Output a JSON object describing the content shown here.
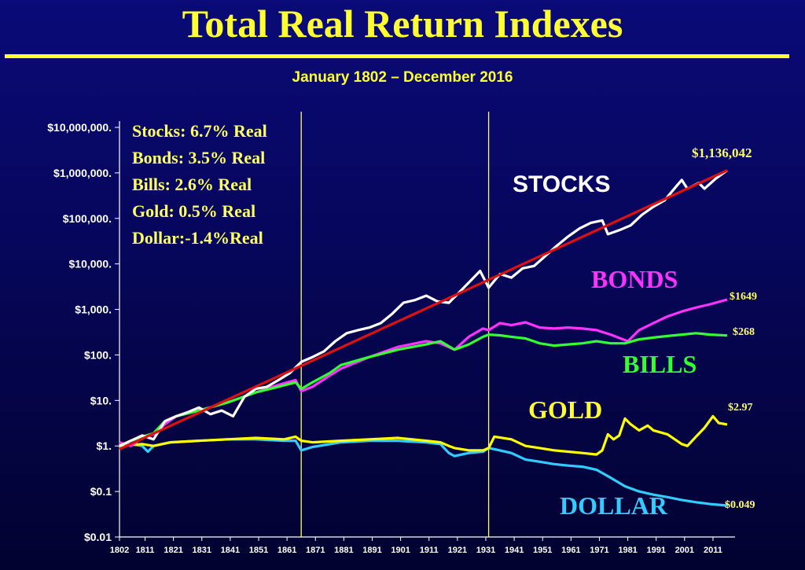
{
  "chart_data": {
    "type": "line",
    "title": "Total Real Return Indexes",
    "subtitle": "January 1802 – December 2016",
    "yscale": "log",
    "ylim": [
      0.01,
      10000000
    ],
    "xlim": [
      1802,
      2016
    ],
    "y_ticks": [
      {
        "value": 10000000,
        "label": "$10,000,000."
      },
      {
        "value": 1000000,
        "label": "$1,000,000."
      },
      {
        "value": 100000,
        "label": "$100,000."
      },
      {
        "value": 10000,
        "label": "$10,000."
      },
      {
        "value": 1000,
        "label": "$1,000."
      },
      {
        "value": 100,
        "label": "$100."
      },
      {
        "value": 10,
        "label": "$10."
      },
      {
        "value": 1,
        "label": "$1."
      },
      {
        "value": 0.1,
        "label": "$0.1"
      },
      {
        "value": 0.01,
        "label": "$0.01"
      }
    ],
    "x_ticks": [
      1802,
      1811,
      1821,
      1831,
      1841,
      1851,
      1861,
      1871,
      1881,
      1891,
      1901,
      1911,
      1921,
      1931,
      1941,
      1951,
      1961,
      1971,
      1981,
      1991,
      2001,
      2011
    ],
    "vlines": [
      1866,
      1932
    ],
    "legend": [
      "Stocks: 6.7% Real",
      "Bonds: 3.5% Real",
      "Bills:    2.6% Real",
      "Gold:   0.5% Real",
      "Dollar:-1.4%Real"
    ],
    "series": [
      {
        "name": "STOCKS",
        "color": "#ffffff",
        "end_label": "$1,136,042",
        "x": [
          1802,
          1806,
          1810,
          1814,
          1818,
          1822,
          1826,
          1830,
          1834,
          1838,
          1842,
          1846,
          1850,
          1854,
          1858,
          1862,
          1866,
          1870,
          1874,
          1878,
          1882,
          1886,
          1890,
          1894,
          1898,
          1902,
          1906,
          1910,
          1914,
          1918,
          1922,
          1926,
          1929,
          1932,
          1936,
          1940,
          1944,
          1948,
          1952,
          1956,
          1960,
          1964,
          1968,
          1972,
          1974,
          1978,
          1982,
          1986,
          1990,
          1994,
          1998,
          2000,
          2002,
          2006,
          2008,
          2012,
          2016
        ],
        "y": [
          1,
          1.3,
          1.7,
          1.4,
          3.5,
          4.5,
          5.5,
          7,
          5,
          6,
          4.5,
          12,
          18,
          20,
          28,
          40,
          70,
          90,
          120,
          200,
          300,
          350,
          400,
          500,
          800,
          1400,
          1600,
          2000,
          1500,
          1400,
          2500,
          4500,
          7000,
          3000,
          6000,
          5000,
          8000,
          9000,
          15000,
          25000,
          40000,
          60000,
          80000,
          90000,
          45000,
          55000,
          70000,
          120000,
          180000,
          250000,
          500000,
          700000,
          450000,
          600000,
          450000,
          750000,
          1136042
        ]
      },
      {
        "name": "BONDS",
        "color": "#ff33ff",
        "end_label": "$1649",
        "x": [
          1802,
          1806,
          1810,
          1814,
          1818,
          1822,
          1830,
          1840,
          1850,
          1858,
          1864,
          1866,
          1870,
          1876,
          1880,
          1890,
          1900,
          1910,
          1915,
          1920,
          1925,
          1930,
          1932,
          1936,
          1940,
          1945,
          1950,
          1955,
          1960,
          1965,
          1970,
          1975,
          1981,
          1985,
          1990,
          1995,
          2000,
          2005,
          2010,
          2016
        ],
        "y": [
          1.2,
          1,
          1.5,
          1.8,
          3,
          4.5,
          6,
          9,
          15,
          22,
          28,
          16,
          20,
          35,
          50,
          90,
          150,
          200,
          180,
          130,
          250,
          380,
          350,
          500,
          450,
          520,
          400,
          380,
          400,
          380,
          350,
          280,
          200,
          350,
          500,
          700,
          900,
          1100,
          1300,
          1649
        ]
      },
      {
        "name": "BILLS",
        "color": "#33ff33",
        "end_label": "$268",
        "x": [
          1802,
          1806,
          1810,
          1814,
          1818,
          1822,
          1830,
          1840,
          1850,
          1858,
          1864,
          1866,
          1870,
          1876,
          1880,
          1890,
          1900,
          1910,
          1915,
          1920,
          1925,
          1930,
          1932,
          1936,
          1940,
          1945,
          1950,
          1955,
          1960,
          1965,
          1970,
          1975,
          1980,
          1985,
          1990,
          1995,
          2000,
          2005,
          2010,
          2016
        ],
        "y": [
          1,
          1.3,
          1.6,
          1.9,
          3.5,
          4.5,
          6,
          9,
          15,
          20,
          25,
          18,
          25,
          40,
          60,
          90,
          130,
          170,
          200,
          130,
          170,
          250,
          280,
          270,
          250,
          230,
          180,
          160,
          170,
          180,
          200,
          180,
          180,
          220,
          240,
          260,
          280,
          300,
          280,
          268
        ]
      },
      {
        "name": "GOLD",
        "color": "#ffff00",
        "end_label": "$2.97",
        "x": [
          1802,
          1810,
          1814,
          1820,
          1830,
          1840,
          1850,
          1860,
          1864,
          1866,
          1870,
          1880,
          1890,
          1900,
          1910,
          1915,
          1918,
          1920,
          1925,
          1930,
          1932,
          1934,
          1940,
          1945,
          1950,
          1955,
          1960,
          1965,
          1970,
          1972,
          1974,
          1976,
          1978,
          1980,
          1982,
          1985,
          1988,
          1990,
          1995,
          2000,
          2002,
          2005,
          2008,
          2011,
          2013,
          2016
        ],
        "y": [
          1,
          1.1,
          1,
          1.2,
          1.3,
          1.4,
          1.5,
          1.4,
          1.6,
          1.3,
          1.2,
          1.3,
          1.4,
          1.5,
          1.3,
          1.2,
          1,
          0.9,
          0.8,
          0.8,
          0.9,
          1.6,
          1.4,
          1.0,
          0.9,
          0.8,
          0.75,
          0.7,
          0.65,
          0.8,
          1.8,
          1.4,
          1.7,
          4,
          3,
          2.2,
          2.8,
          2.2,
          1.8,
          1.1,
          1,
          1.6,
          2.5,
          4.5,
          3.2,
          2.97
        ]
      },
      {
        "name": "DOLLAR",
        "color": "#33ccff",
        "end_label": "$0.049",
        "x": [
          1802,
          1806,
          1810,
          1812,
          1814,
          1820,
          1830,
          1840,
          1850,
          1860,
          1864,
          1866,
          1870,
          1880,
          1890,
          1900,
          1910,
          1915,
          1918,
          1920,
          1925,
          1930,
          1932,
          1934,
          1940,
          1945,
          1950,
          1955,
          1960,
          1965,
          1970,
          1975,
          1980,
          1985,
          1990,
          1995,
          2000,
          2005,
          2010,
          2016
        ],
        "y": [
          1,
          1.1,
          1,
          0.75,
          1,
          1.2,
          1.3,
          1.4,
          1.4,
          1.3,
          1.3,
          0.8,
          0.95,
          1.2,
          1.3,
          1.3,
          1.2,
          1.1,
          0.7,
          0.6,
          0.7,
          0.75,
          0.9,
          0.85,
          0.7,
          0.5,
          0.45,
          0.4,
          0.37,
          0.35,
          0.3,
          0.2,
          0.13,
          0.1,
          0.085,
          0.075,
          0.065,
          0.058,
          0.053,
          0.049
        ]
      }
    ],
    "trend_line": {
      "color": "#dd1111",
      "x": [
        1802,
        2016
      ],
      "y": [
        0.85,
        1136042
      ]
    }
  },
  "labels": {
    "stocks": "STOCKS",
    "bonds": "BONDS",
    "bills": "BILLS",
    "gold": "GOLD",
    "dollar": "DOLLAR",
    "stocks_end": "$1,136,042",
    "bonds_end": "$1649",
    "bills_end": "$268",
    "gold_end": "$2.97",
    "dollar_end": "$0.049"
  }
}
